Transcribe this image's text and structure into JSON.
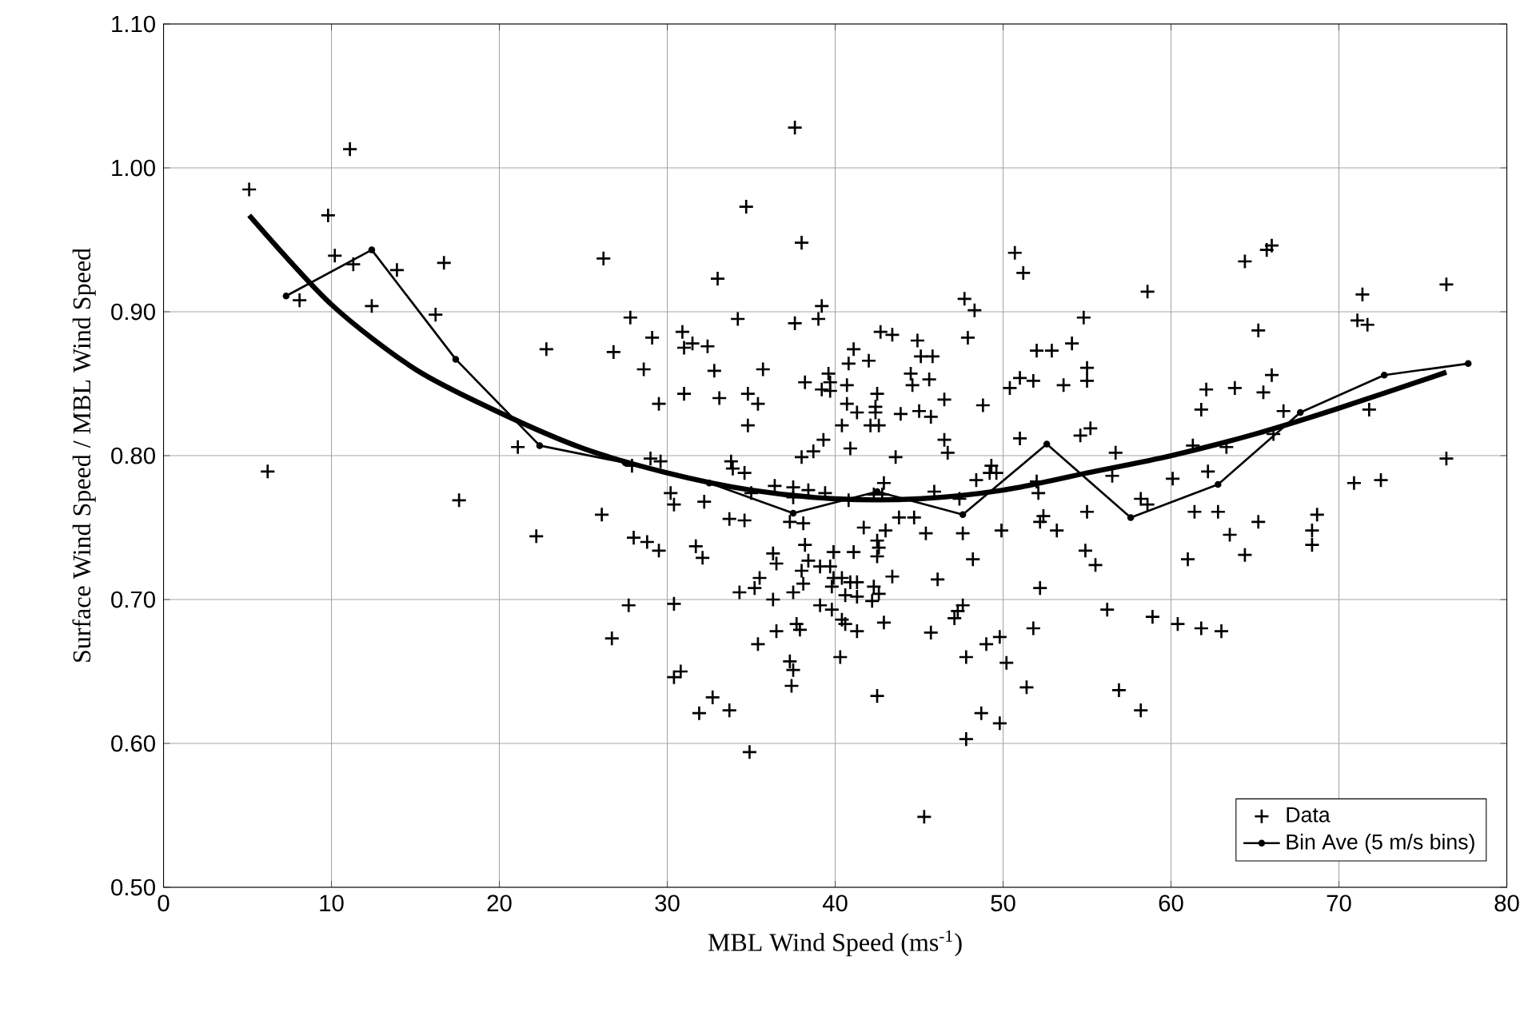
{
  "chart_data": {
    "type": "scatter",
    "xlabel": "MBL Wind Speed (ms$^{-1}$)",
    "ylabel": "Surface Wind Speed / MBL Wind Speed",
    "xlim": [
      0,
      80
    ],
    "ylim": [
      0.5,
      1.1
    ],
    "xticks": [
      0,
      10,
      20,
      30,
      40,
      50,
      60,
      70,
      80
    ],
    "yticks": [
      {
        "value": 0.5,
        "label": "0.50"
      },
      {
        "value": 0.6,
        "label": "0.60"
      },
      {
        "value": 0.7,
        "label": "0.70"
      },
      {
        "value": 0.8,
        "label": "0.80"
      },
      {
        "value": 0.9,
        "label": "0.90"
      },
      {
        "value": 1.0,
        "label": "1.00"
      },
      {
        "value": 1.1,
        "label": "1.10"
      }
    ],
    "grid": true,
    "legend": "bottom right",
    "series": [
      {
        "name": "Data",
        "type": "scatter",
        "marker": "cross",
        "color": "#000000",
        "x": [
          5.1,
          11.1,
          9.8,
          10.2,
          11.3,
          13.9,
          16.7,
          8.1,
          12.4,
          16.2,
          6.2,
          17.6,
          26.2,
          34.7,
          33.0,
          27.8,
          34.2,
          22.8,
          26.8,
          29.1,
          30.9,
          31.0,
          31.5,
          32.4,
          28.6,
          32.8,
          29.5,
          31.0,
          33.1,
          34.8,
          34.8,
          21.1,
          22.2,
          26.1,
          28.0,
          28.8,
          29.5,
          29.0,
          29.6,
          27.9,
          30.2,
          30.4,
          32.2,
          31.7,
          32.1,
          33.7,
          34.6,
          33.8,
          33.9,
          34.6,
          34.3,
          27.7,
          30.4,
          26.7,
          30.4,
          30.8,
          32.7,
          31.9,
          33.7,
          34.9,
          39.2,
          39.0,
          37.6,
          35.7,
          35.4,
          38.2,
          39.2,
          39.6,
          39.7,
          39.7,
          40.7,
          41.1,
          40.8,
          42.0,
          40.7,
          41.3,
          40.4,
          42.7,
          43.4,
          42.5,
          42.4,
          42.4,
          42.1,
          42.6,
          44.9,
          45.1,
          45.8,
          44.5,
          44.6,
          45.6,
          46.5,
          43.9,
          45.0,
          45.7,
          46.5,
          46.7,
          47.7,
          48.3,
          47.9,
          51.2,
          48.8,
          50.4,
          51.0,
          51.8,
          52.0,
          51.0,
          39.3,
          38.7,
          38.0,
          40.9,
          43.6,
          35.0,
          36.4,
          37.5,
          37.5,
          38.4,
          39.4,
          40.8,
          42.3,
          42.9,
          42.8,
          45.9,
          47.4,
          48.4,
          49.3,
          49.2,
          49.6,
          52.0,
          37.3,
          38.1,
          41.7,
          43.0,
          43.8,
          44.7,
          45.4,
          47.6,
          49.9,
          38.2,
          39.9,
          41.1,
          42.5,
          42.6,
          42.5,
          36.3,
          36.5,
          38.4,
          38.0,
          39.1,
          39.7,
          35.5,
          35.2,
          38.1,
          37.5,
          39.8,
          39.9,
          40.4,
          40.9,
          41.3,
          40.6,
          41.3,
          42.3,
          42.6,
          42.2,
          43.4,
          46.1,
          48.2,
          36.3,
          39.1,
          39.8,
          47.6,
          47.1,
          47.3,
          51.8,
          40.4,
          40.6,
          41.3,
          42.9,
          45.7,
          36.5,
          37.7,
          37.9,
          35.4,
          40.3,
          37.3,
          37.5,
          37.4,
          42.5,
          47.8,
          49.0,
          49.8,
          50.2,
          51.4,
          48.7,
          49.8,
          47.8,
          45.3,
          37.6,
          38.0,
          50.7,
          58.6,
          64.4,
          65.7,
          66.0,
          71.4,
          76.4,
          71.1,
          71.7,
          54.8,
          65.2,
          52.9,
          54.1,
          55.0,
          55.0,
          53.6,
          66.0,
          62.1,
          63.8,
          65.5,
          61.8,
          66.7,
          71.8,
          54.6,
          55.2,
          56.7,
          61.3,
          63.3,
          66.1,
          76.4,
          70.9,
          72.5,
          52.1,
          56.5,
          60.1,
          62.2,
          55.0,
          58.2,
          58.6,
          52.4,
          52.2,
          53.2,
          54.9,
          55.5,
          61.4,
          62.8,
          65.2,
          68.7,
          68.4,
          68.4,
          63.5,
          64.4,
          61.0,
          52.2,
          56.2,
          58.9,
          60.4,
          61.8,
          63.0,
          56.9,
          58.2
        ],
        "values": [
          0.985,
          1.013,
          0.967,
          0.939,
          0.933,
          0.929,
          0.934,
          0.908,
          0.904,
          0.898,
          0.789,
          0.769,
          0.937,
          0.973,
          0.923,
          0.896,
          0.895,
          0.874,
          0.872,
          0.882,
          0.886,
          0.875,
          0.878,
          0.876,
          0.86,
          0.859,
          0.836,
          0.843,
          0.84,
          0.843,
          0.821,
          0.806,
          0.744,
          0.759,
          0.743,
          0.74,
          0.734,
          0.798,
          0.796,
          0.793,
          0.774,
          0.766,
          0.768,
          0.737,
          0.729,
          0.756,
          0.755,
          0.796,
          0.791,
          0.788,
          0.705,
          0.696,
          0.697,
          0.673,
          0.646,
          0.65,
          0.632,
          0.621,
          0.623,
          0.594,
          0.904,
          0.895,
          0.892,
          0.86,
          0.836,
          0.851,
          0.846,
          0.857,
          0.851,
          0.845,
          0.849,
          0.874,
          0.864,
          0.866,
          0.836,
          0.83,
          0.821,
          0.886,
          0.884,
          0.843,
          0.834,
          0.83,
          0.821,
          0.821,
          0.88,
          0.869,
          0.869,
          0.857,
          0.849,
          0.853,
          0.839,
          0.829,
          0.831,
          0.827,
          0.811,
          0.802,
          0.909,
          0.901,
          0.882,
          0.927,
          0.835,
          0.847,
          0.854,
          0.852,
          0.873,
          0.812,
          0.811,
          0.803,
          0.799,
          0.805,
          0.799,
          0.774,
          0.779,
          0.778,
          0.771,
          0.776,
          0.774,
          0.769,
          0.773,
          0.781,
          0.773,
          0.775,
          0.77,
          0.783,
          0.793,
          0.788,
          0.788,
          0.782,
          0.754,
          0.753,
          0.75,
          0.748,
          0.757,
          0.757,
          0.746,
          0.746,
          0.748,
          0.738,
          0.733,
          0.733,
          0.741,
          0.736,
          0.73,
          0.732,
          0.725,
          0.727,
          0.72,
          0.723,
          0.723,
          0.715,
          0.708,
          0.711,
          0.705,
          0.709,
          0.715,
          0.715,
          0.712,
          0.712,
          0.703,
          0.702,
          0.709,
          0.704,
          0.699,
          0.716,
          0.714,
          0.728,
          0.7,
          0.696,
          0.693,
          0.696,
          0.687,
          0.692,
          0.68,
          0.686,
          0.683,
          0.678,
          0.684,
          0.677,
          0.678,
          0.683,
          0.679,
          0.669,
          0.66,
          0.657,
          0.651,
          0.64,
          0.633,
          0.66,
          0.669,
          0.674,
          0.656,
          0.639,
          0.621,
          0.614,
          0.603,
          0.549,
          1.028,
          0.948,
          0.941,
          0.914,
          0.935,
          0.943,
          0.946,
          0.912,
          0.919,
          0.894,
          0.891,
          0.896,
          0.887,
          0.873,
          0.878,
          0.861,
          0.852,
          0.849,
          0.856,
          0.846,
          0.847,
          0.844,
          0.832,
          0.831,
          0.832,
          0.814,
          0.819,
          0.802,
          0.807,
          0.806,
          0.815,
          0.798,
          0.781,
          0.783,
          0.774,
          0.786,
          0.784,
          0.789,
          0.761,
          0.77,
          0.766,
          0.758,
          0.754,
          0.748,
          0.734,
          0.724,
          0.761,
          0.761,
          0.754,
          0.759,
          0.748,
          0.738,
          0.745,
          0.731,
          0.728,
          0.708,
          0.693,
          0.688,
          0.683,
          0.68,
          0.678,
          0.637,
          0.623
        ]
      },
      {
        "name": "Bin Ave (5 m/s bins)",
        "type": "line",
        "marker": "circle",
        "color": "#000000",
        "x": [
          7.3,
          12.4,
          17.4,
          22.4,
          27.5,
          32.5,
          37.5,
          42.5,
          47.6,
          52.6,
          57.6,
          62.8,
          67.7,
          72.7,
          77.7
        ],
        "values": [
          0.911,
          0.943,
          0.867,
          0.807,
          0.795,
          0.781,
          0.76,
          0.775,
          0.759,
          0.808,
          0.757,
          0.78,
          0.83,
          0.856,
          0.864
        ]
      },
      {
        "type": "line",
        "marker": "none",
        "color": "#000000",
        "x": [
          5.1,
          10,
          15,
          20,
          25,
          30,
          35,
          40,
          45,
          50,
          55,
          60,
          65,
          70,
          76.4
        ],
        "values": [
          0.967,
          0.905,
          0.86,
          0.83,
          0.805,
          0.788,
          0.776,
          0.77,
          0.77,
          0.776,
          0.788,
          0.8,
          0.815,
          0.833,
          0.858
        ]
      }
    ]
  }
}
